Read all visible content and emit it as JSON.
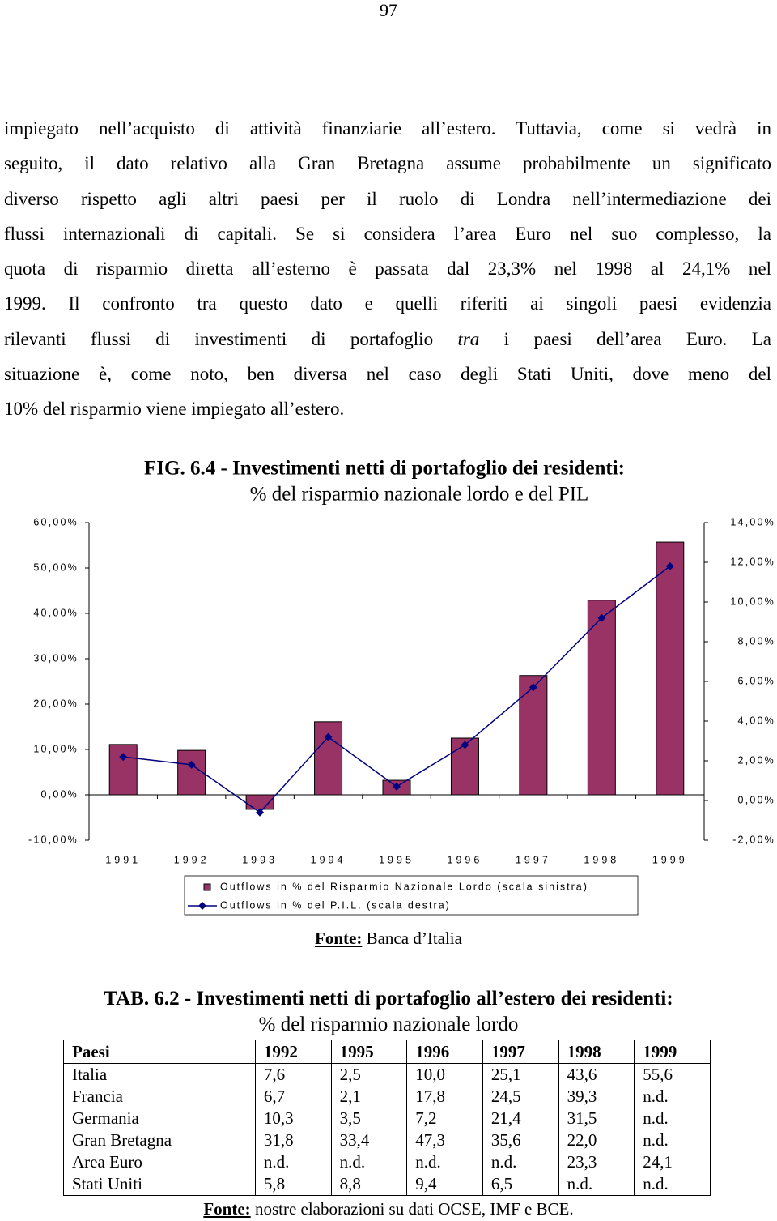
{
  "page_number": "97",
  "paragraph": [
    "impiegato nell’acquisto di attività finanziarie all’estero. Tuttavia, come si vedrà in",
    "seguito, il dato relativo alla Gran Bretagna assume probabilmente un significato",
    "diverso rispetto agli altri paesi per il ruolo di Londra nell’intermediazione dei",
    "flussi internazionali di capitali. Se si considera l’area Euro nel suo complesso, la",
    "quota di risparmio diretta all’esterno è passata dal 23,3% nel 1998 al 24,1% nel",
    "1999. Il confronto tra questo dato e quelli riferiti ai singoli paesi evidenzia",
    [
      "rilevanti flussi di investimenti di portafoglio ",
      "tra",
      " i paesi dell’area Euro. La"
    ],
    "situazione è, come noto, ben diversa nel caso degli Stati Uniti, dove meno del",
    "10% del risparmio viene impiegato all’estero."
  ],
  "chart_data": {
    "type": "bar",
    "title": "FIG. 6.4 - Investimenti netti di portafoglio dei residenti:",
    "subtitle": "% del risparmio nazionale lordo e del PIL",
    "categories": [
      "1991",
      "1992",
      "1993",
      "1994",
      "1995",
      "1996",
      "1997",
      "1998",
      "1999"
    ],
    "series": [
      {
        "name": "Outflows in % del Risparmio Nazionale Lordo (scala sinistra)",
        "type": "bar",
        "color": "#993366",
        "values": [
          11.1,
          9.8,
          -3.2,
          16.1,
          3.2,
          12.5,
          26.3,
          42.9,
          55.7
        ]
      },
      {
        "name": "Outflows in % del P.I.L. (scala destra)",
        "type": "line",
        "axis": "y2",
        "color": "#000080",
        "values": [
          2.2,
          1.8,
          -0.6,
          3.2,
          0.7,
          2.8,
          5.7,
          9.2,
          11.8
        ]
      }
    ],
    "ylim": [
      -10,
      60
    ],
    "yticks": [
      {
        "value": -10,
        "label": "-10,00%"
      },
      {
        "value": 0,
        "label": "0,00%"
      },
      {
        "value": 10,
        "label": "10,00%"
      },
      {
        "value": 20,
        "label": "20,00%"
      },
      {
        "value": 30,
        "label": "30,00%"
      },
      {
        "value": 40,
        "label": "40,00%"
      },
      {
        "value": 50,
        "label": "50,00%"
      },
      {
        "value": 60,
        "label": "60,00%"
      }
    ],
    "y2lim": [
      -2,
      14
    ],
    "y2ticks": [
      {
        "value": -2,
        "label": "-2,00%"
      },
      {
        "value": 0,
        "label": "0,00%"
      },
      {
        "value": 2,
        "label": "2,00%"
      },
      {
        "value": 4,
        "label": "4,00%"
      },
      {
        "value": 6,
        "label": "6,00%"
      },
      {
        "value": 8,
        "label": "8,00%"
      },
      {
        "value": 10,
        "label": "10,00%"
      },
      {
        "value": 12,
        "label": "12,00%"
      },
      {
        "value": 14,
        "label": "14,00%"
      }
    ],
    "grid": false,
    "legend": "bottom"
  },
  "figure_source": {
    "label": "Fonte:",
    "text": "Banca d’Italia"
  },
  "table": {
    "title": "TAB. 6.2 - Investimenti netti di portafoglio all’estero dei residenti:",
    "subtitle": "% del risparmio nazionale lordo",
    "header": [
      "Paesi",
      "1992",
      "1995",
      "1996",
      "1997",
      "1998",
      "1999"
    ],
    "rows": [
      [
        "Italia",
        "7,6",
        "2,5",
        "10,0",
        "25,1",
        "43,6",
        "55,6"
      ],
      [
        "Francia",
        "6,7",
        "2,1",
        "17,8",
        "24,5",
        "39,3",
        "n.d."
      ],
      [
        "Germania",
        "10,3",
        "3,5",
        "7,2",
        "21,4",
        "31,5",
        "n.d."
      ],
      [
        "Gran Bretagna",
        "31,8",
        "33,4",
        "47,3",
        "35,6",
        "22,0",
        "n.d."
      ],
      [
        "Area Euro",
        "n.d.",
        "n.d.",
        "n.d.",
        "n.d.",
        "23,3",
        "24,1"
      ],
      [
        "Stati Uniti",
        "5,8",
        "8,8",
        "9,4",
        "6,5",
        "n.d.",
        "n.d."
      ]
    ],
    "source": {
      "label": "Fonte:",
      "text": "nostre elaborazioni su dati OCSE, IMF e BCE."
    }
  }
}
